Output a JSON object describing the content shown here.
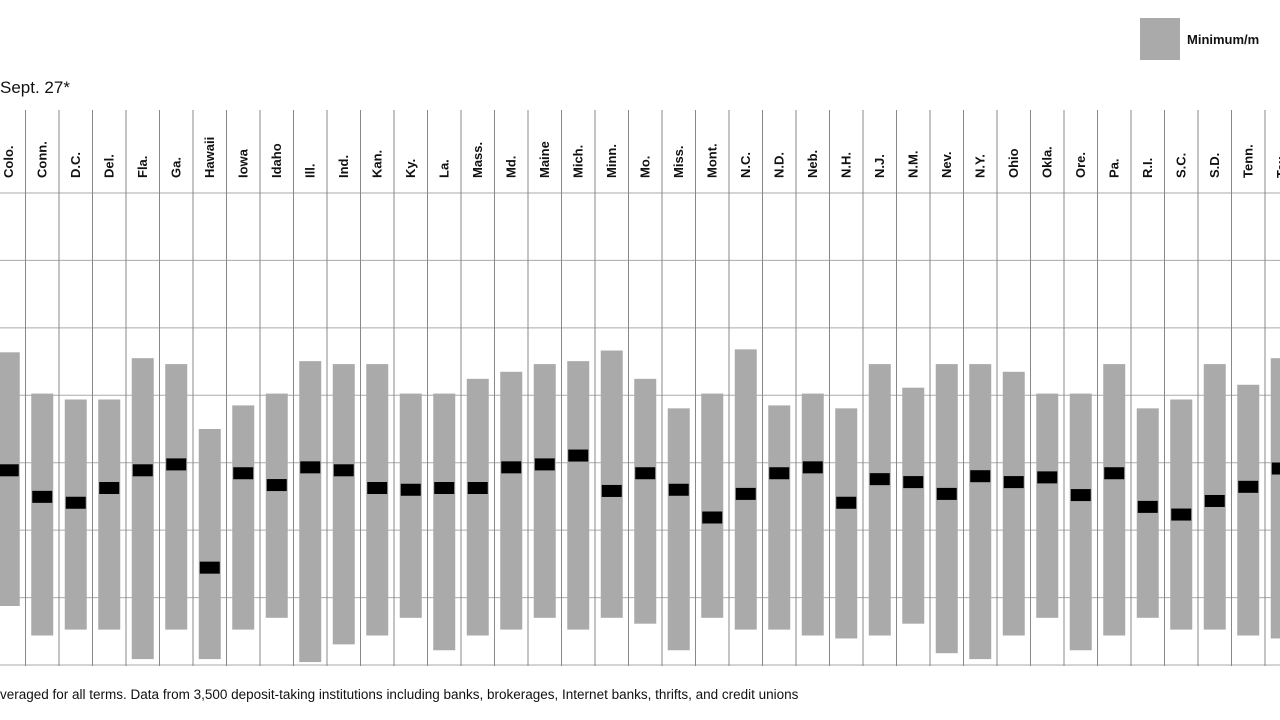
{
  "title": "Sept. 27*",
  "legend": {
    "label": "Minimum/m",
    "color": "#aaaaaa"
  },
  "footnote": "veraged for all terms. Data from 3,500 deposit-taking institutions including banks, brokerages, Internet banks, thrifts, and credit unions",
  "colors": {
    "range": "#aaaaaa",
    "marker": "#000000",
    "grid": "#aaaaaa",
    "divider": "#888888"
  },
  "chart_data": {
    "type": "range",
    "note": "Value scale read as gridline units (0 = bottom gridline, 8 = top gridline); the axis prints no tick labels.",
    "ylim": [
      0,
      8
    ],
    "grid": true,
    "legend_position": "top-right",
    "categories": [
      "Colo.",
      "Conn.",
      "D.C.",
      "Del.",
      "Fla.",
      "Ga.",
      "Hawaii",
      "Iowa",
      "Idaho",
      "Ill.",
      "Ind.",
      "Kan.",
      "Ky.",
      "La.",
      "Mass.",
      "Md.",
      "Maine",
      "Mich.",
      "Minn.",
      "Mo.",
      "Miss.",
      "Mont.",
      "N.C.",
      "N.D.",
      "Neb.",
      "N.H.",
      "N.J.",
      "N.M.",
      "Nev.",
      "N.Y.",
      "Ohio",
      "Okla.",
      "Ore.",
      "Pa.",
      "R.I.",
      "S.C.",
      "S.D.",
      "Tenn.",
      "Tex."
    ],
    "min": [
      1.0,
      0.5,
      0.6,
      0.6,
      0.1,
      0.6,
      0.1,
      0.6,
      0.8,
      0.05,
      0.35,
      0.5,
      0.8,
      0.25,
      0.5,
      0.6,
      0.8,
      0.6,
      0.8,
      0.7,
      0.25,
      0.8,
      0.6,
      0.6,
      0.5,
      0.45,
      0.5,
      0.7,
      0.2,
      0.1,
      0.5,
      0.8,
      0.25,
      0.5,
      0.8,
      0.6,
      0.6,
      0.5,
      0.45
    ],
    "max": [
      5.3,
      4.6,
      4.5,
      4.5,
      5.2,
      5.1,
      4.0,
      4.4,
      4.6,
      5.15,
      5.1,
      5.1,
      4.6,
      4.6,
      4.85,
      4.97,
      5.1,
      5.15,
      5.33,
      4.85,
      4.35,
      4.6,
      5.35,
      4.4,
      4.6,
      4.35,
      5.1,
      4.7,
      5.1,
      5.1,
      4.97,
      4.6,
      4.6,
      5.1,
      4.35,
      4.5,
      5.1,
      4.75,
      5.2
    ],
    "avg": [
      3.3,
      2.85,
      2.75,
      3.0,
      3.3,
      3.4,
      1.65,
      3.25,
      3.05,
      3.35,
      3.3,
      3.0,
      2.97,
      3.0,
      3.0,
      3.35,
      3.4,
      3.55,
      2.95,
      3.25,
      2.97,
      2.5,
      2.9,
      3.25,
      3.35,
      2.75,
      3.15,
      3.1,
      2.9,
      3.2,
      3.1,
      3.18,
      2.88,
      3.25,
      2.68,
      2.55,
      2.78,
      3.02,
      3.33
    ]
  }
}
